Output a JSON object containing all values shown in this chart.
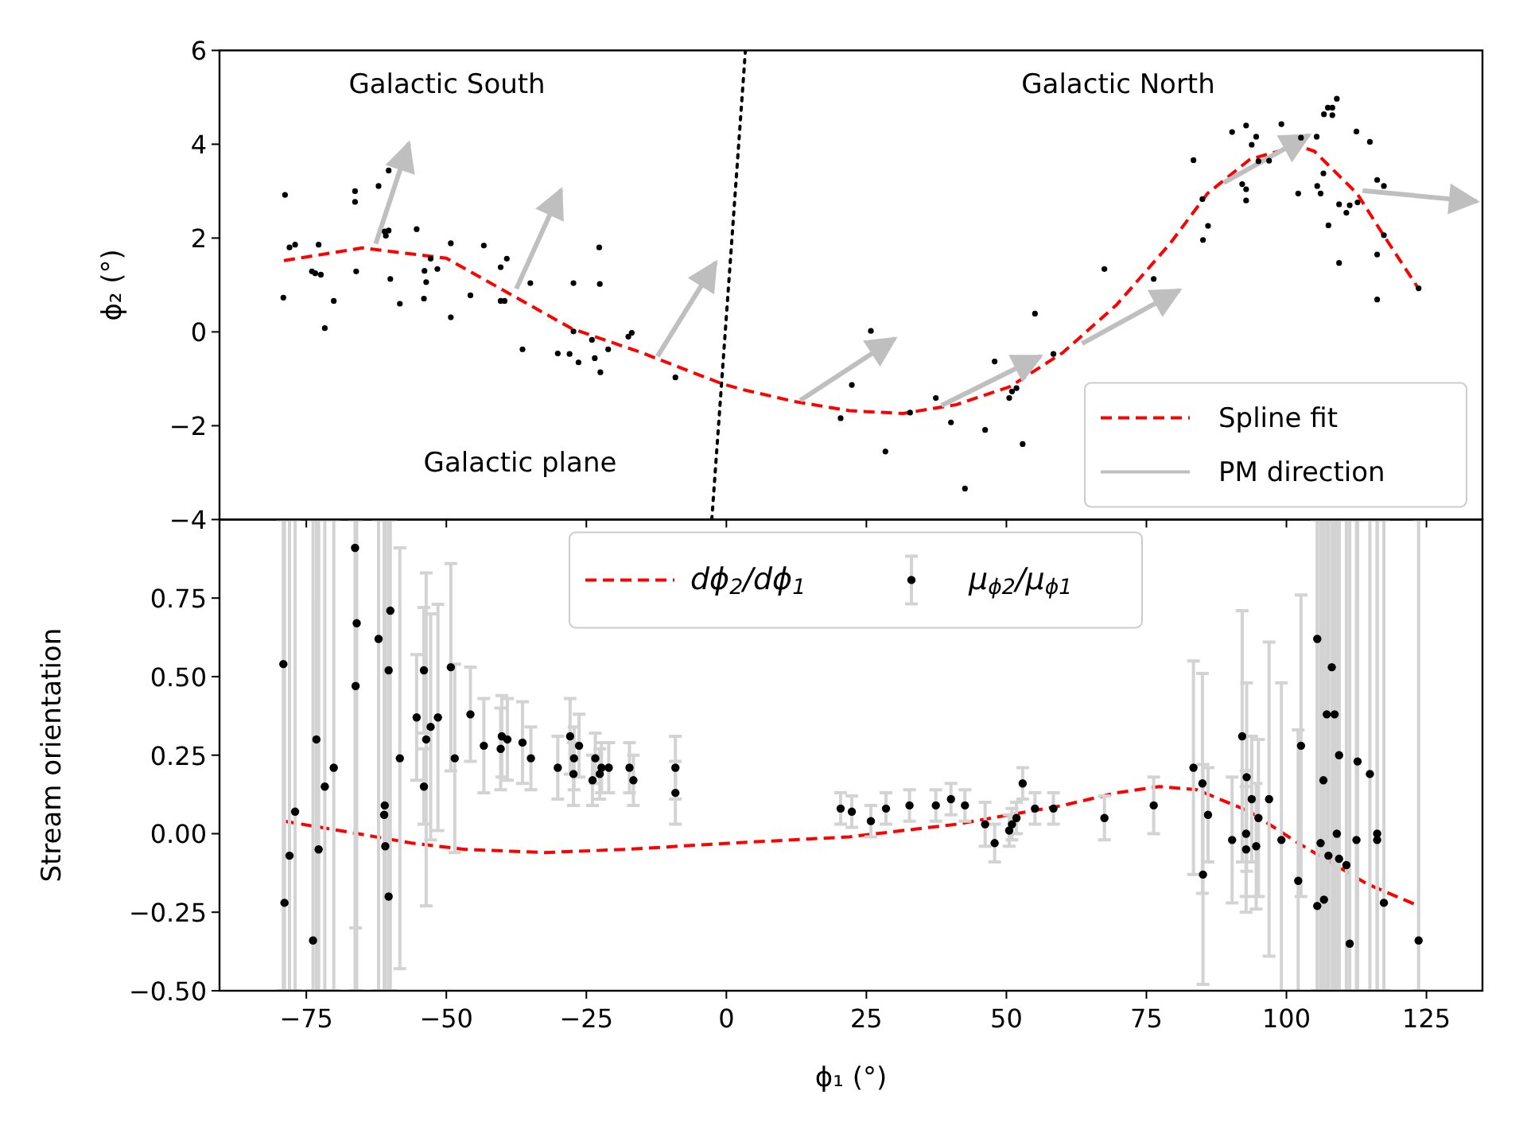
{
  "chart_data": [
    {
      "type": "scatter",
      "ylabel": "ϕ₂ (°)",
      "xlim": [
        -90.5,
        135
      ],
      "ylim": [
        -4,
        6
      ],
      "xticks": [
        -75,
        -50,
        -25,
        0,
        25,
        50,
        75,
        100,
        125
      ],
      "yticks": [
        {
          "value": -4,
          "label": "−4"
        },
        {
          "value": -2,
          "label": "−2"
        },
        0,
        2,
        4,
        6
      ],
      "tick_labels": "y",
      "legend": "bottom right",
      "grid": false,
      "annotations": [
        "Galactic South",
        "Galactic North",
        "Galactic plane"
      ],
      "series": [
        {
          "type": "line",
          "color": "#000000",
          "line_style": "dotted",
          "x": [
            -2.6,
            3.4
          ],
          "values": [
            -4,
            6
          ]
        },
        {
          "color": "#000000",
          "marker": "circle",
          "x": [
            -78.8,
            -79.1,
            -78,
            -77,
            -72.8,
            -74,
            -73.4,
            -72.4,
            -71.7,
            -70.1,
            -66.3,
            -66.3,
            -66.1,
            -62.1,
            -60.3,
            -61,
            -60.3,
            -60.8,
            -60,
            -58.3,
            -55.3,
            -53.9,
            -53.6,
            -54,
            -52.8,
            -51.6,
            -49.2,
            -49.2,
            -45.7,
            -43.3,
            -40.3,
            -39.2,
            -40.3,
            -39.6,
            -35,
            -36.4,
            -30.1,
            -28,
            -26.4,
            -27.3,
            -27.3,
            -22.7,
            -22.6,
            -24,
            -23.5,
            -22.5,
            -21.1,
            -17.5,
            -16.9,
            -9.1,
            25.8,
            22.4,
            20.4,
            28.4,
            32.8,
            37.4,
            40.1,
            42.6,
            46.2,
            47.9,
            50.5,
            51,
            51.8,
            52.9,
            55.1,
            58.4,
            67.5,
            76.3,
            83.4,
            85,
            86,
            85.1,
            90.3,
            92.8,
            93.8,
            94.6,
            92.1,
            92.8,
            92.8,
            95,
            96.9,
            99.1,
            102.6,
            105.4,
            102.1,
            105.5,
            106.1,
            106.6,
            106.7,
            107.4,
            108.2,
            108.2,
            109,
            107.5,
            109.4,
            110.7,
            111.3,
            112.7,
            109.4,
            112.5,
            114.9,
            116.2,
            117.4,
            117.4,
            116.2,
            116.2,
            123.6
          ],
          "values": [
            2.92,
            0.73,
            1.8,
            1.86,
            1.86,
            1.29,
            1.25,
            1.22,
            0.08,
            0.66,
            3.0,
            2.77,
            1.29,
            3.11,
            3.44,
            2.14,
            2.16,
            2.05,
            1.13,
            0.6,
            2.19,
            1.3,
            1.06,
            0.71,
            1.56,
            1.34,
            1.89,
            0.31,
            0.78,
            1.84,
            1.38,
            1.56,
            0.66,
            0.66,
            1.04,
            -0.37,
            -0.46,
            -0.47,
            -0.65,
            1.04,
            0.01,
            1.8,
            1.02,
            -0.17,
            -0.56,
            -0.86,
            -0.37,
            -0.1,
            -0.02,
            -0.97,
            0.02,
            -1.13,
            -1.84,
            -2.55,
            -1.72,
            -1.41,
            -1.93,
            -3.34,
            -2.09,
            -0.63,
            -1.41,
            -1.27,
            -1.2,
            -2.39,
            0.39,
            -0.47,
            1.34,
            1.13,
            3.66,
            2.83,
            2.26,
            1.96,
            4.26,
            4.4,
            3.99,
            4.16,
            3.15,
            3.04,
            2.8,
            3.64,
            3.65,
            4.43,
            4.14,
            4.16,
            2.95,
            3.11,
            2.95,
            3.38,
            4.64,
            4.78,
            4.78,
            4.62,
            4.97,
            2.27,
            2.72,
            2.54,
            2.7,
            2.76,
            1.47,
            4.27,
            4.05,
            3.24,
            3.11,
            2.06,
            1.65,
            0.69,
            0.93
          ]
        },
        {
          "type": "line",
          "name": "Spline fit",
          "color": "#ff0000",
          "line_style": "dashed",
          "x": [
            -79,
            -65,
            -50,
            -40.3,
            -27.6,
            -15.2,
            -0.9,
            2.9,
            12.4,
            22,
            31.5,
            41.1,
            50.6,
            60.1,
            69.7,
            79.2,
            85.9,
            93.5,
            102.1,
            105,
            112.6,
            117.4,
            123.6
          ],
          "values": [
            1.52,
            1.79,
            1.57,
            0.92,
            0.07,
            -0.44,
            -1.1,
            -1.23,
            -1.49,
            -1.68,
            -1.74,
            -1.55,
            -1.17,
            -0.44,
            0.58,
            1.88,
            2.95,
            3.68,
            3.97,
            3.85,
            2.95,
            2.05,
            0.92
          ]
        },
        {
          "type": "line",
          "name": "PM direction",
          "color": "#bfbfbf",
          "x": [
            -62.6,
            -56.7,
            null,
            -37.5,
            -29.5,
            null,
            -12.3,
            -1.9,
            null,
            13.2,
            30.1,
            null,
            38.4,
            56.1,
            null,
            63.5,
            80.9,
            null,
            88.8,
            104,
            null,
            113.6,
            134
          ],
          "values": [
            1.88,
            4.02,
            null,
            0.92,
            3.03,
            null,
            -0.52,
            1.48,
            null,
            -1.46,
            -0.14,
            null,
            -1.57,
            -0.52,
            null,
            -0.25,
            0.89,
            null,
            3.18,
            4.19,
            null,
            3.01,
            2.78
          ]
        }
      ]
    },
    {
      "type": "scatter",
      "xlabel": "ϕ₁ (°)",
      "ylabel": "Stream orientation",
      "xlim": [
        -90.5,
        135
      ],
      "ylim": [
        -0.5,
        1.0
      ],
      "xticks": [
        {
          "value": -75,
          "label": "−75"
        },
        {
          "value": -50,
          "label": "−50"
        },
        {
          "value": -25,
          "label": "−25"
        },
        0,
        25,
        50,
        75,
        100,
        125
      ],
      "yticks": [
        {
          "value": -0.5,
          "label": "−0.50"
        },
        {
          "value": -0.25,
          "label": "−0.25"
        },
        {
          "value": 0,
          "label": "0.00"
        },
        {
          "value": 0.25,
          "label": "0.25"
        },
        {
          "value": 0.5,
          "label": "0.50"
        },
        {
          "value": 0.75,
          "label": "0.75"
        }
      ],
      "legend": "top",
      "grid": false,
      "series": [
        {
          "type": "line",
          "name": "dϕ$_{2}$/dϕ$_{1}$",
          "color": "#ff0000",
          "line_style": "dashed",
          "x": [
            -79,
            -65.8,
            -56.2,
            -46.7,
            -32.4,
            -18.1,
            1,
            22,
            41.1,
            50.6,
            60.1,
            69.7,
            77.3,
            84,
            93.5,
            102.1,
            107.8,
            114.4,
            123.6
          ],
          "values": [
            0.04,
            0.0,
            -0.03,
            -0.05,
            -0.06,
            -0.05,
            -0.03,
            -0.01,
            0.03,
            0.06,
            0.09,
            0.13,
            0.15,
            0.14,
            0.07,
            -0.03,
            -0.09,
            -0.16,
            -0.23
          ]
        },
        {
          "name": "μ$_{ϕ2}$/μ$_{ϕ1}$",
          "color": "#000000",
          "marker": "circle",
          "x": [
            -79.1,
            -78.9,
            -78,
            -77,
            -73.8,
            -73.2,
            -72.8,
            -71.7,
            -70.1,
            -66.3,
            -66,
            -66.2,
            -62.1,
            -60,
            -60.3,
            -61,
            -61.1,
            -60.9,
            -60.3,
            -58.3,
            -55.3,
            -54,
            -53.6,
            -54,
            -52.8,
            -51.5,
            -49.2,
            -48.5,
            -45.7,
            -43.3,
            -40.3,
            -40.1,
            -39.1,
            -36.4,
            -34.9,
            -30.1,
            -27.9,
            -27.2,
            -26.3,
            -27.3,
            -23.9,
            -23.4,
            -22.6,
            -22.3,
            -21,
            -17.3,
            -16.6,
            -9.1,
            -9.1,
            20.4,
            22.4,
            25.8,
            28.5,
            32.7,
            37.4,
            40.1,
            42.6,
            46.2,
            47.9,
            50.5,
            51,
            51.8,
            52.9,
            55.1,
            58.4,
            67.5,
            76.3,
            83.4,
            85,
            86,
            85.1,
            90.3,
            92.1,
            92.9,
            93.8,
            92.8,
            92.8,
            94.6,
            95,
            96.9,
            99.1,
            102.1,
            102.6,
            105.5,
            105.5,
            106.1,
            106.6,
            106.7,
            107.2,
            108.6,
            107.5,
            108.1,
            109,
            109.4,
            109.4,
            110.7,
            111.3,
            112.5,
            112.7,
            114.9,
            116.2,
            116.2,
            117.4,
            123.6
          ],
          "values": [
            0.54,
            -0.22,
            -0.07,
            0.07,
            -0.34,
            0.3,
            -0.05,
            0.15,
            0.21,
            0.91,
            0.67,
            0.47,
            0.62,
            0.71,
            0.52,
            0.09,
            0.06,
            -0.04,
            -0.2,
            0.24,
            0.37,
            0.52,
            0.3,
            0.15,
            0.34,
            0.37,
            0.53,
            0.24,
            0.38,
            0.28,
            0.27,
            0.31,
            0.3,
            0.29,
            0.24,
            0.21,
            0.31,
            0.24,
            0.28,
            0.19,
            0.17,
            0.24,
            0.19,
            0.21,
            0.21,
            0.21,
            0.17,
            0.21,
            0.13,
            0.08,
            0.07,
            0.04,
            0.08,
            0.09,
            0.09,
            0.11,
            0.09,
            0.03,
            -0.03,
            0.01,
            0.03,
            0.05,
            0.16,
            0.08,
            0.08,
            0.05,
            0.09,
            0.21,
            0.16,
            0.06,
            -0.13,
            -0.02,
            0.31,
            0.18,
            0.11,
            0.0,
            -0.05,
            -0.04,
            0.05,
            0.11,
            -0.02,
            -0.15,
            0.28,
            0.62,
            -0.23,
            -0.03,
            0.17,
            -0.21,
            0.38,
            0.38,
            -0.07,
            0.53,
            0.0,
            0.25,
            -0.08,
            -0.1,
            -0.35,
            -0.02,
            0.23,
            0.19,
            0.0,
            -0.02,
            -0.22,
            -0.34
          ],
          "errors": [
            [
              -0.5,
              1.0
            ],
            [
              -0.5,
              1.0
            ],
            [
              -0.5,
              1.0
            ],
            [
              -0.5,
              1.0
            ],
            [
              -0.5,
              1.0
            ],
            [
              -0.5,
              1.0
            ],
            [
              -0.5,
              1.0
            ],
            [
              -0.5,
              1.0
            ],
            [
              -0.5,
              1.0
            ],
            [
              -0.5,
              1.0
            ],
            [
              -0.5,
              1.0
            ],
            [
              -0.3,
              1.0
            ],
            [
              -0.5,
              1.0
            ],
            [
              -0.5,
              1.0
            ],
            [
              -0.5,
              1.0
            ],
            [
              -0.5,
              1.0
            ],
            [
              -0.5,
              1.0
            ],
            [
              -0.5,
              1.0
            ],
            [
              -0.5,
              1.0
            ],
            0.67,
            0.2,
            0.2,
            0.53,
            0.12,
            0.36,
            0.36,
            0.33,
            0.3,
            0.15,
            0.15,
            0.13,
            0.13,
            0.13,
            0.13,
            0.1,
            0.1,
            0.12,
            0.1,
            0.1,
            0.1,
            0.08,
            0.08,
            0.08,
            0.08,
            0.08,
            0.08,
            0.08,
            0.1,
            0.1,
            0.05,
            0.05,
            0.05,
            0.05,
            0.05,
            0.05,
            0.05,
            0.05,
            0.07,
            0.06,
            0.05,
            0.05,
            0.05,
            0.05,
            0.05,
            0.05,
            0.07,
            0.09,
            0.34,
            0.35,
            0.15,
            0.35,
            0.2,
            0.4,
            0.3,
            0.2,
            0.2,
            0.2,
            0.2,
            0.25,
            0.5,
            0.5,
            0.48,
            0.48,
            [
              -0.5,
              1.0
            ],
            [
              -0.5,
              1.0
            ],
            [
              -0.5,
              1.0
            ],
            [
              -0.5,
              1.0
            ],
            [
              -0.5,
              1.0
            ],
            [
              -0.5,
              1.0
            ],
            [
              -0.5,
              1.0
            ],
            [
              -0.5,
              1.0
            ],
            [
              -0.5,
              1.0
            ],
            [
              -0.5,
              1.0
            ],
            [
              -0.5,
              1.0
            ],
            [
              -0.5,
              1.0
            ],
            [
              -0.5,
              1.0
            ],
            [
              -0.5,
              1.0
            ],
            [
              -0.5,
              1.0
            ],
            [
              -0.5,
              1.0
            ],
            [
              -0.5,
              1.0
            ],
            [
              -0.5,
              1.0
            ],
            [
              -0.5,
              1.0
            ],
            [
              -0.5,
              1.0
            ],
            [
              -0.5,
              1.0
            ]
          ]
        }
      ]
    }
  ]
}
